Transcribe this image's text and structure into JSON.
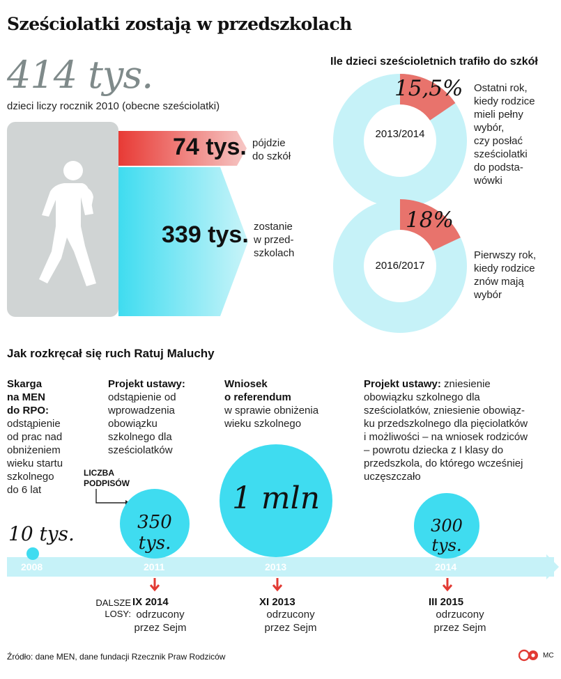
{
  "title": "Sześciolatki zostają w przedszkolach",
  "cohort": {
    "total": "414 tys.",
    "caption": "dzieci liczy rocznik 2010 (obecne sześciolatki)",
    "to_school_value": "74 tys.",
    "to_school_label": [
      "pójdzie",
      "do szkół"
    ],
    "stay_value": "339 tys.",
    "stay_label": [
      "zostanie",
      "w przed-",
      "szkolach"
    ]
  },
  "chart_data": [
    {
      "type": "pie",
      "variant": "donut",
      "title": "Ile dzieci sześcioletnich trafiło do szkół",
      "year": "2013/2014",
      "value_label": "15,5%",
      "values": [
        15.5,
        84.5
      ],
      "note": [
        "Ostatni rok,",
        "kiedy rodzice",
        "mieli pełny",
        "wybór,",
        "czy posłać",
        "sześciolatki",
        "do podsta-",
        "wówki"
      ]
    },
    {
      "type": "pie",
      "variant": "donut",
      "year": "2016/2017",
      "value_label": "18%",
      "values": [
        18,
        82
      ],
      "note": [
        "Pierwszy rok,",
        "kiedy rodzice",
        "znów mają",
        "wybór"
      ]
    },
    {
      "type": "scatter",
      "variant": "bubble-timeline",
      "title": "Jak rozkręcał się ruch Ratuj Maluchy",
      "series_label": [
        "LICZBA",
        "PODPISÓW"
      ],
      "points": [
        {
          "year": "2008",
          "signatures": 10000,
          "label": "10 tys."
        },
        {
          "year": "2011",
          "signatures": 350000,
          "label": "350 tys."
        },
        {
          "year": "2013",
          "signatures": 1000000,
          "label": "1 mln"
        },
        {
          "year": "2014",
          "signatures": 300000,
          "label": "300 tys."
        }
      ]
    }
  ],
  "events": {
    "e2008": {
      "head": [
        "Skarga",
        "na MEN",
        "do RPO:"
      ],
      "body": [
        "odstąpienie",
        "od prac nad",
        "obniżeniem",
        "wieku startu",
        "szkolnego",
        "do 6 lat"
      ]
    },
    "e2011": {
      "head": "Projekt ustawy:",
      "body": [
        "odstąpienie od",
        "wprowadzenia",
        "obowiązku",
        "szkolnego dla",
        "sześciolatków"
      ]
    },
    "e2013": {
      "head": [
        "Wniosek",
        "o referendum"
      ],
      "body": [
        "w sprawie obniżenia",
        "wieku szkolnego"
      ]
    },
    "e2014": {
      "head": "Projekt ustawy:",
      "lines": [
        " zniesienie",
        "obowiązku szkolnego dla",
        "sześciolatków, zniesienie obowiąz-",
        "ku przedszkolnego dla pięciolatków",
        "i możliwości – na wniosek rodziców",
        "– powrotu dziecka z I klasy do",
        "przedszkola, do którego wcześniej",
        "uczęszczało"
      ]
    }
  },
  "fates": {
    "label": [
      "DALSZE",
      "LOSY:"
    ],
    "items": [
      {
        "date": "IX 2014",
        "text": [
          "odrzucony",
          "przez Sejm"
        ]
      },
      {
        "date": "XI 2013",
        "text": [
          "odrzucony",
          "przez Sejm"
        ]
      },
      {
        "date": "III 2015",
        "text": [
          "odrzucony",
          "przez Sejm"
        ]
      }
    ]
  },
  "source": "Źródło: dane MEN, dane fundacji Rzecznik Praw Rodziców",
  "credit": "MC",
  "colors": {
    "cyan": "#3fdcf0",
    "light_cyan": "#c6f2f8",
    "red": "#e8736c",
    "pink": "#f4b9b6",
    "grey_box": "#d0d4d4",
    "grey_num": "#7f8a8a"
  }
}
